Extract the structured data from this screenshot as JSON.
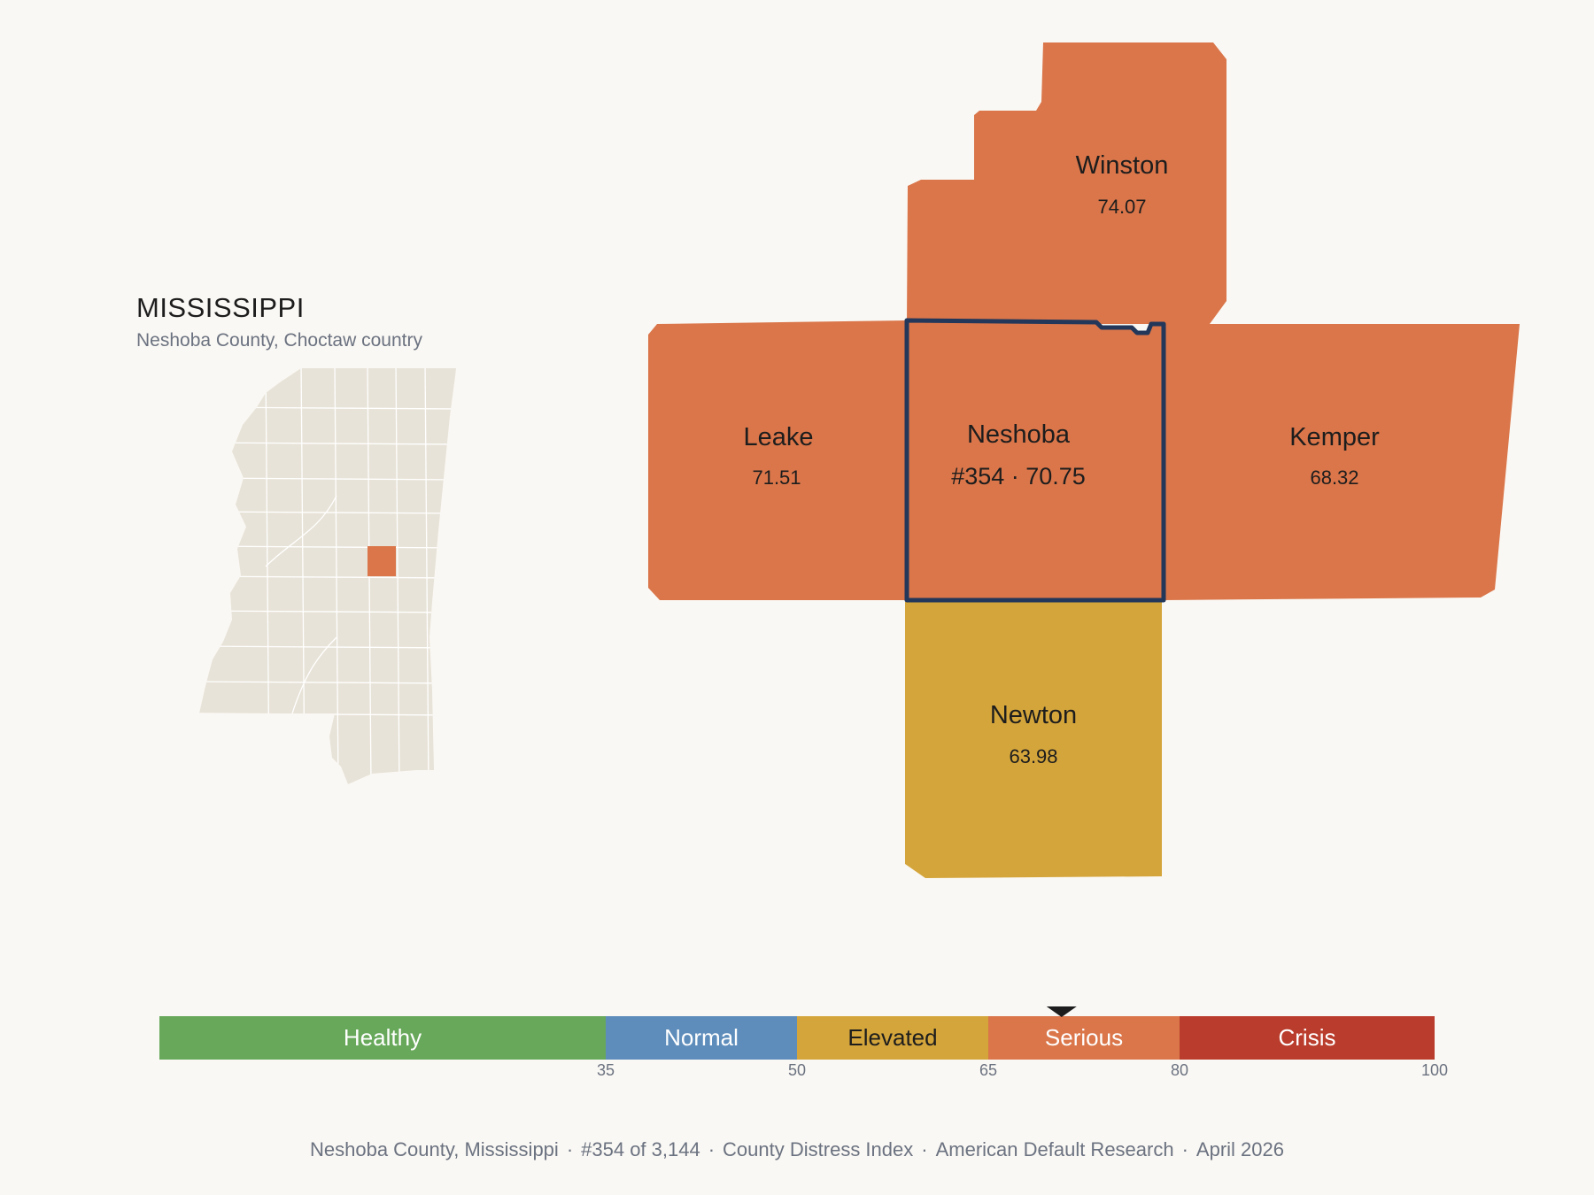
{
  "state": {
    "title": "MISSISSIPPI",
    "subtitle": "Neshoba County, Choctaw country",
    "base_fill": "#e8e3d8",
    "highlight_fill": "#da764a"
  },
  "counties": {
    "winston": {
      "name": "Winston",
      "value": "74.07",
      "fill": "#da764a"
    },
    "leake": {
      "name": "Leake",
      "value": "71.51",
      "fill": "#da764a"
    },
    "neshoba": {
      "name": "Neshoba",
      "value": "#354 · 70.75",
      "fill": "#da764a",
      "outline": "#22375a"
    },
    "kemper": {
      "name": "Kemper",
      "value": "68.32",
      "fill": "#da764a"
    },
    "newton": {
      "name": "Newton",
      "value": "63.98",
      "fill": "#d4a53b"
    }
  },
  "scale": {
    "min": 0,
    "max": 100,
    "marker_value": 70.75,
    "segments": [
      {
        "label": "Healthy",
        "from": 0,
        "to": 35,
        "color": "#67a85a",
        "text_color": "#ffffff"
      },
      {
        "label": "Normal",
        "from": 35,
        "to": 50,
        "color": "#5e8dbb",
        "text_color": "#ffffff"
      },
      {
        "label": "Elevated",
        "from": 50,
        "to": 65,
        "color": "#d4a53b",
        "text_color": "#1d1d1d"
      },
      {
        "label": "Serious",
        "from": 65,
        "to": 80,
        "color": "#da764a",
        "text_color": "#ffffff"
      },
      {
        "label": "Crisis",
        "from": 80,
        "to": 100,
        "color": "#ba3c2c",
        "text_color": "#ffffff"
      }
    ],
    "ticks": [
      "35",
      "50",
      "65",
      "80",
      "100"
    ]
  },
  "footer": {
    "parts": [
      "Neshoba County, Mississippi",
      "#354 of 3,144",
      "County Distress Index",
      "American Default Research",
      "April 2026"
    ],
    "separator": "·"
  }
}
